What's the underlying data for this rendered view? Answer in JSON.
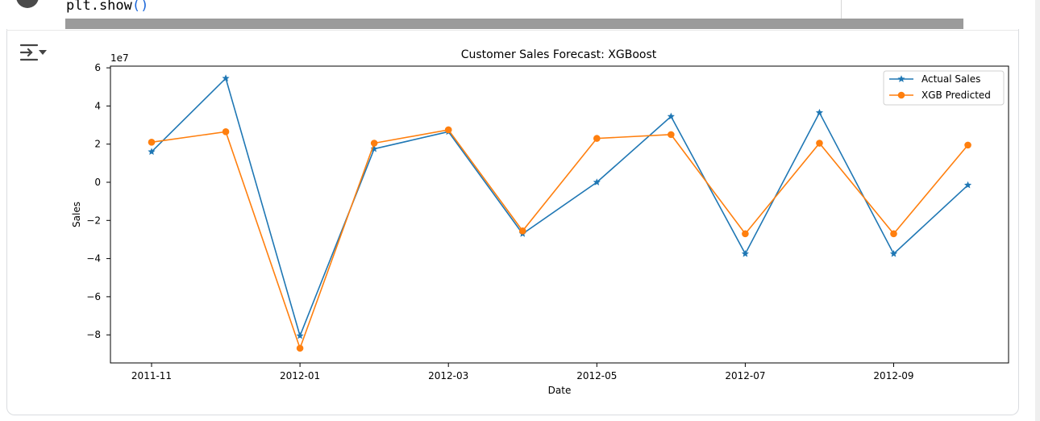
{
  "code": {
    "function_name": "plt.show",
    "parens": "()"
  },
  "output_icon": "output-toggle-icon",
  "chart_data": {
    "type": "line",
    "title": "Customer Sales Forecast: XGBoost",
    "xlabel": "Date",
    "ylabel": "Sales",
    "y_offset_label": "1e7",
    "x_ticks": [
      "2011-11",
      "2012-01",
      "2012-03",
      "2012-05",
      "2012-07",
      "2012-09"
    ],
    "y_ticks": [
      "6",
      "4",
      "2",
      "0",
      "−2",
      "−4",
      "−6",
      "−8"
    ],
    "y_tick_values": [
      6,
      4,
      2,
      0,
      -2,
      -4,
      -6,
      -8
    ],
    "ylim": [
      -9.5,
      6.2
    ],
    "x": [
      "2011-11",
      "2011-12",
      "2012-01",
      "2012-02",
      "2012-03",
      "2012-04",
      "2012-05",
      "2012-06",
      "2012-07",
      "2012-08",
      "2012-09",
      "2012-10"
    ],
    "grid": false,
    "legend_position": "top-right",
    "series": [
      {
        "name": "Actual Sales",
        "color": "#1f77b4",
        "marker": "star",
        "values": [
          1.6,
          5.45,
          -8.05,
          1.75,
          2.65,
          -2.7,
          0.0,
          3.45,
          -3.75,
          3.65,
          -3.75,
          -0.15
        ]
      },
      {
        "name": "XGB Predicted",
        "color": "#ff7f0e",
        "marker": "circle",
        "values": [
          2.1,
          2.65,
          -8.7,
          2.05,
          2.75,
          -2.55,
          2.3,
          2.5,
          -2.7,
          2.05,
          -2.7,
          1.95
        ]
      }
    ]
  }
}
